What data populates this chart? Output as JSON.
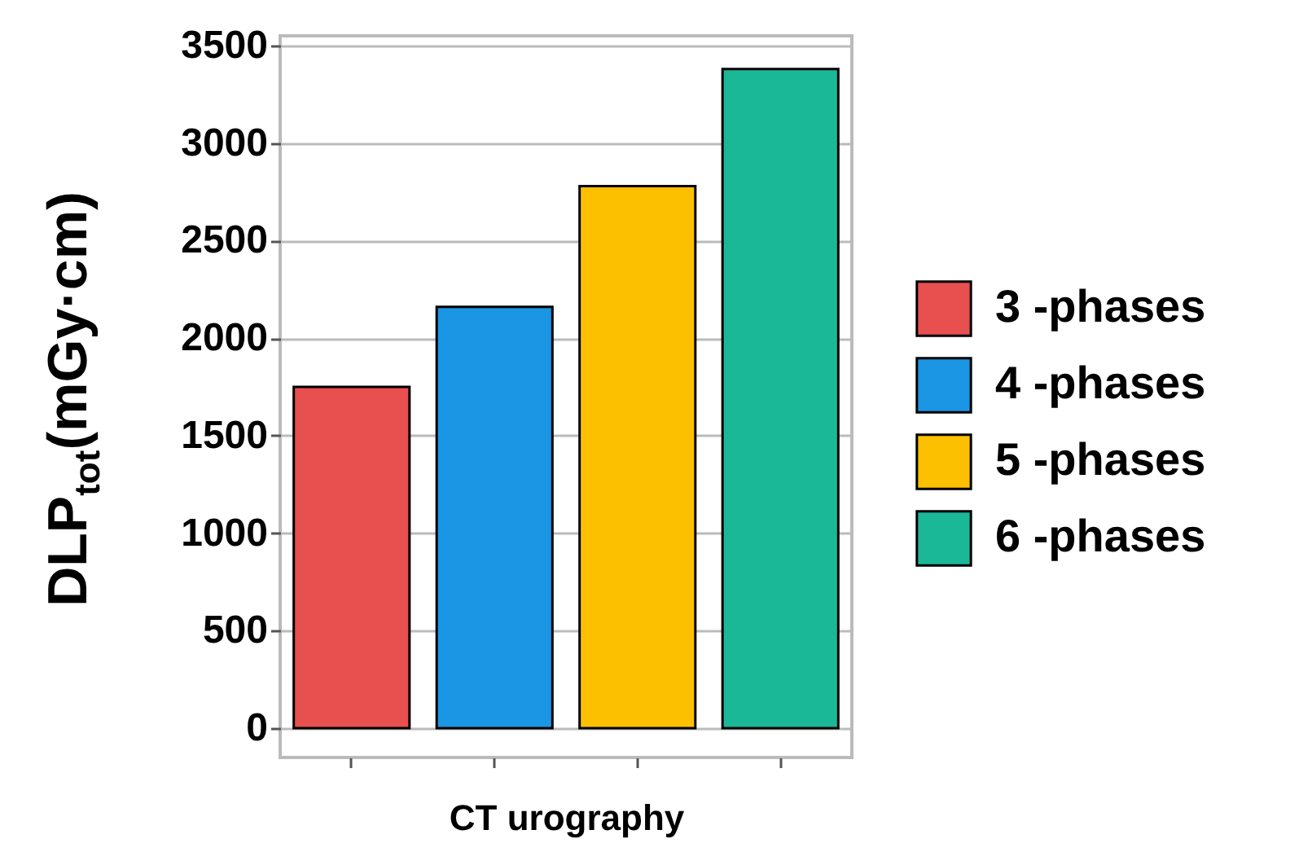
{
  "chart_data": {
    "type": "bar",
    "xlabel": "CT urography",
    "ylabel": "DLP$_{tot}$(mGy·cm)",
    "categories": [
      null,
      null,
      null,
      null
    ],
    "series": [
      {
        "name": "3 -phases",
        "color": "#e84f4f",
        "values": [
          1750,
          null,
          null,
          null
        ]
      },
      {
        "name": "4 -phases",
        "color": "#1a96e4",
        "values": [
          null,
          2160,
          null,
          null
        ]
      },
      {
        "name": "5 -phases",
        "color": "#fdc000",
        "values": [
          null,
          null,
          2780,
          null
        ]
      },
      {
        "name": "6 -phases",
        "color": "#1bb898",
        "values": [
          null,
          null,
          null,
          3380
        ]
      }
    ],
    "ylim": [
      -150,
      3550
    ],
    "yticks": [
      0,
      500,
      1000,
      1500,
      2000,
      2500,
      3000,
      3500
    ],
    "grid": "y",
    "legend": "right",
    "tick_labels": "y"
  }
}
